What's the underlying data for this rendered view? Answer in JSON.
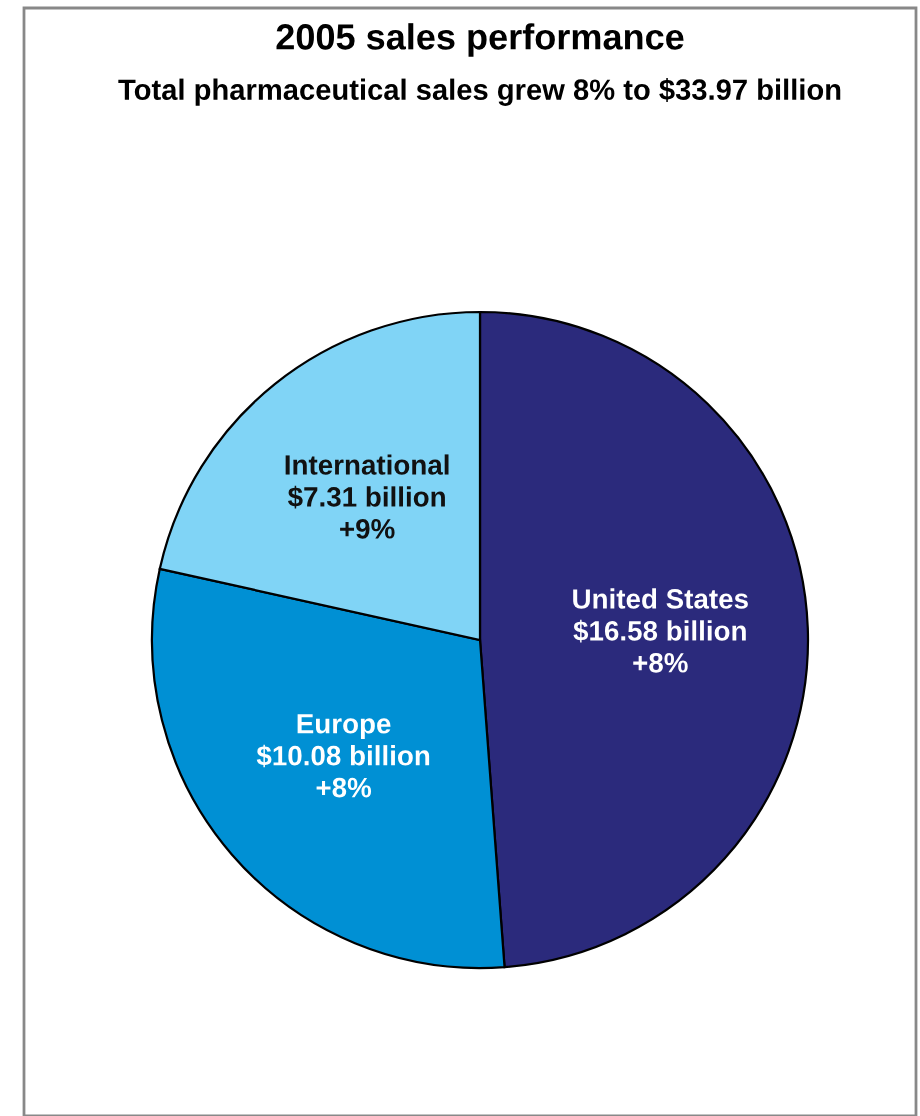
{
  "chart_data": {
    "type": "pie",
    "title": "2005 sales performance",
    "subtitle": "Total pharmaceutical sales grew 8% to $33.97 billion",
    "categories": [
      "United States",
      "Europe",
      "International"
    ],
    "values": [
      16.58,
      10.08,
      7.31
    ],
    "colors": [
      "#2b2a7c",
      "#0090d4",
      "#80d4f6"
    ],
    "value_labels": [
      "$16.58 billion",
      "$10.08 billion",
      "$7.31 billion"
    ],
    "annotations": [
      {
        "text": "+8%",
        "x": "United States"
      },
      {
        "text": "+8%",
        "x": "Europe"
      },
      {
        "text": "+9%",
        "x": "International"
      }
    ]
  }
}
